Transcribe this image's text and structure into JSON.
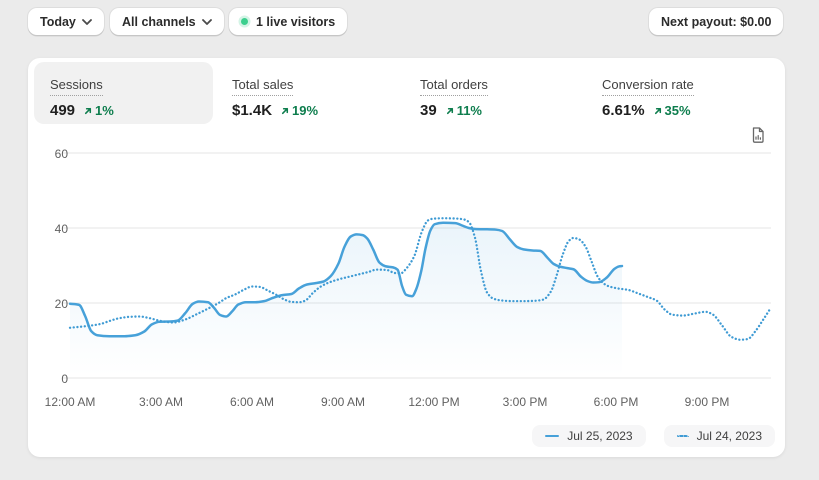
{
  "toolbar": {
    "date_button": "Today",
    "channel_button": "All channels",
    "live_badge": "1 live visitors",
    "payout_button": "Next payout: $0.00"
  },
  "metrics": [
    {
      "label": "Sessions",
      "value": "499",
      "delta": "1%",
      "selected": true
    },
    {
      "label": "Total sales",
      "value": "$1.4K",
      "delta": "19%",
      "selected": false
    },
    {
      "label": "Total orders",
      "value": "39",
      "delta": "11%",
      "selected": false
    },
    {
      "label": "Conversion rate",
      "value": "6.61%",
      "delta": "35%",
      "selected": false
    }
  ],
  "chart_data": {
    "type": "line",
    "title": "Sessions",
    "ylim": [
      0,
      60
    ],
    "y_ticks": [
      "0",
      "20",
      "40",
      "60"
    ],
    "x_ticks": [
      "12:00 AM",
      "3:00 AM",
      "6:00 AM",
      "9:00 AM",
      "12:00 PM",
      "3:00 PM",
      "6:00 PM",
      "9:00 PM"
    ],
    "grid": "horizontal",
    "legend_position": "bottom-right",
    "series": [
      {
        "name": "Jul 25, 2023",
        "style": "solid",
        "area_fill": true,
        "points": [
          [
            0,
            19.8
          ],
          [
            0.3,
            19.5
          ],
          [
            0.5,
            16.5
          ],
          [
            0.7,
            12.5
          ],
          [
            0.9,
            11.4
          ],
          [
            1.3,
            11.15
          ],
          [
            1.8,
            11.15
          ],
          [
            2.15,
            11.4
          ],
          [
            2.45,
            12.4
          ],
          [
            2.7,
            14.3
          ],
          [
            2.95,
            15.0
          ],
          [
            3.3,
            15.05
          ],
          [
            3.55,
            15.3
          ],
          [
            3.8,
            17.3
          ],
          [
            4.05,
            19.8
          ],
          [
            4.25,
            20.4
          ],
          [
            4.55,
            20.2
          ],
          [
            4.75,
            18.7
          ],
          [
            4.95,
            16.8
          ],
          [
            5.15,
            16.4
          ],
          [
            5.35,
            17.8
          ],
          [
            5.55,
            19.6
          ],
          [
            5.8,
            20.2
          ],
          [
            6.1,
            20.2
          ],
          [
            6.4,
            20.5
          ],
          [
            6.7,
            21.4
          ],
          [
            7.0,
            22.1
          ],
          [
            7.3,
            22.4
          ],
          [
            7.55,
            23.9
          ],
          [
            7.8,
            24.9
          ],
          [
            8.1,
            25.3
          ],
          [
            8.35,
            25.7
          ],
          [
            8.6,
            27.2
          ],
          [
            8.85,
            30.5
          ],
          [
            9.05,
            35.0
          ],
          [
            9.25,
            37.7
          ],
          [
            9.45,
            38.3
          ],
          [
            9.65,
            38.1
          ],
          [
            9.8,
            37.2
          ],
          [
            10.0,
            34.2
          ],
          [
            10.2,
            30.8
          ],
          [
            10.4,
            29.8
          ],
          [
            10.65,
            29.5
          ],
          [
            10.8,
            28.9
          ],
          [
            10.95,
            24.5
          ],
          [
            11.08,
            22.2
          ],
          [
            11.28,
            21.8
          ],
          [
            11.42,
            23.8
          ],
          [
            11.58,
            28.5
          ],
          [
            11.72,
            34.5
          ],
          [
            11.88,
            39.3
          ],
          [
            12.02,
            41.0
          ],
          [
            12.3,
            41.4
          ],
          [
            12.7,
            41.3
          ],
          [
            12.95,
            40.6
          ],
          [
            13.15,
            40.0
          ],
          [
            13.4,
            39.7
          ],
          [
            13.75,
            39.65
          ],
          [
            14.05,
            39.55
          ],
          [
            14.25,
            39.2
          ],
          [
            14.5,
            37.0
          ],
          [
            14.75,
            34.9
          ],
          [
            14.95,
            34.3
          ],
          [
            15.25,
            34.0
          ],
          [
            15.5,
            33.9
          ],
          [
            15.75,
            32.0
          ],
          [
            15.95,
            30.4
          ],
          [
            16.15,
            29.7
          ],
          [
            16.4,
            29.3
          ],
          [
            16.6,
            29.0
          ],
          [
            16.85,
            27.0
          ],
          [
            17.05,
            25.9
          ],
          [
            17.25,
            25.45
          ],
          [
            17.45,
            25.55
          ],
          [
            17.7,
            26.8
          ],
          [
            17.95,
            29.1
          ],
          [
            18.1,
            29.75
          ],
          [
            18.2,
            29.85
          ]
        ]
      },
      {
        "name": "Jul 24, 2023",
        "style": "dotted",
        "area_fill": false,
        "points": [
          [
            0,
            13.4
          ],
          [
            0.5,
            13.8
          ],
          [
            1.0,
            14.4
          ],
          [
            1.3,
            15.2
          ],
          [
            1.6,
            15.9
          ],
          [
            1.95,
            16.3
          ],
          [
            2.3,
            16.4
          ],
          [
            2.6,
            16.0
          ],
          [
            3.0,
            15.2
          ],
          [
            3.4,
            14.8
          ],
          [
            3.8,
            15.6
          ],
          [
            4.2,
            17.1
          ],
          [
            4.6,
            18.7
          ],
          [
            4.9,
            20.0
          ],
          [
            5.15,
            21.3
          ],
          [
            5.45,
            22.3
          ],
          [
            5.75,
            23.6
          ],
          [
            6.0,
            24.4
          ],
          [
            6.25,
            24.3
          ],
          [
            6.55,
            23.2
          ],
          [
            6.8,
            22.2
          ],
          [
            7.05,
            21.0
          ],
          [
            7.3,
            20.3
          ],
          [
            7.55,
            20.2
          ],
          [
            7.75,
            20.6
          ],
          [
            8.0,
            22.6
          ],
          [
            8.25,
            24.3
          ],
          [
            8.55,
            25.5
          ],
          [
            8.9,
            26.4
          ],
          [
            9.2,
            27.0
          ],
          [
            9.5,
            27.6
          ],
          [
            9.85,
            28.3
          ],
          [
            10.1,
            28.9
          ],
          [
            10.45,
            28.8
          ],
          [
            10.7,
            28.0
          ],
          [
            10.9,
            27.9
          ],
          [
            11.1,
            29.3
          ],
          [
            11.35,
            32.5
          ],
          [
            11.6,
            39.0
          ],
          [
            11.8,
            42.0
          ],
          [
            11.95,
            42.45
          ],
          [
            12.3,
            42.6
          ],
          [
            12.65,
            42.55
          ],
          [
            12.95,
            42.35
          ],
          [
            13.15,
            41.6
          ],
          [
            13.35,
            37.5
          ],
          [
            13.55,
            28.5
          ],
          [
            13.75,
            22.8
          ],
          [
            13.95,
            21.2
          ],
          [
            14.2,
            20.7
          ],
          [
            14.6,
            20.5
          ],
          [
            15.0,
            20.5
          ],
          [
            15.35,
            20.6
          ],
          [
            15.6,
            20.9
          ],
          [
            15.85,
            23.0
          ],
          [
            16.05,
            27.5
          ],
          [
            16.25,
            33.0
          ],
          [
            16.45,
            36.6
          ],
          [
            16.6,
            37.35
          ],
          [
            16.8,
            36.9
          ],
          [
            17.0,
            35.0
          ],
          [
            17.2,
            31.0
          ],
          [
            17.4,
            27.0
          ],
          [
            17.55,
            25.5
          ],
          [
            17.75,
            24.5
          ],
          [
            18.05,
            23.9
          ],
          [
            18.4,
            23.5
          ],
          [
            18.75,
            22.5
          ],
          [
            19.05,
            21.6
          ],
          [
            19.35,
            20.6
          ],
          [
            19.6,
            18.3
          ],
          [
            19.85,
            16.9
          ],
          [
            20.2,
            16.65
          ],
          [
            20.6,
            17.2
          ],
          [
            20.95,
            17.65
          ],
          [
            21.2,
            16.9
          ],
          [
            21.5,
            14.0
          ],
          [
            21.8,
            11.0
          ],
          [
            22.1,
            10.2
          ],
          [
            22.35,
            10.4
          ],
          [
            22.6,
            12.5
          ],
          [
            22.85,
            15.5
          ],
          [
            23.05,
            18.0
          ]
        ]
      }
    ]
  },
  "legend": [
    {
      "label": "Jul 25, 2023",
      "style": "solid"
    },
    {
      "label": "Jul 24, 2023",
      "style": "dotted"
    }
  ],
  "colors": {
    "line_solid": "#47a1d9",
    "line_dotted": "#3f9bd4",
    "delta_green": "#0d7d4d",
    "live_dot": "#3ccf8e",
    "page_bg": "#ebebeb"
  }
}
